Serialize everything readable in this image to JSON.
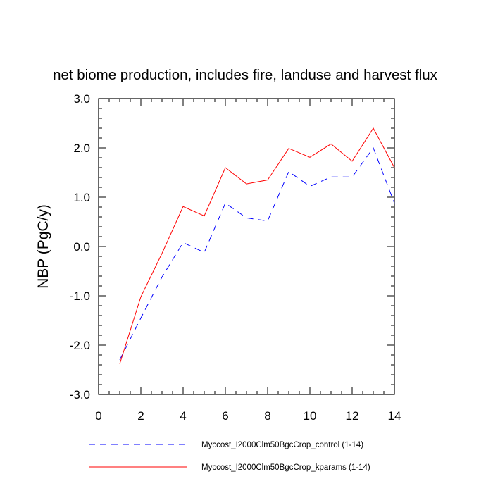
{
  "chart_data": {
    "type": "line",
    "title": "net biome production, includes fire, landuse and harvest flux",
    "xlabel": "",
    "ylabel": "NBP  (PgC/y)",
    "xlim": [
      0,
      14
    ],
    "ylim": [
      -3.0,
      3.0
    ],
    "xticks": [
      0,
      2,
      4,
      6,
      8,
      10,
      12,
      14
    ],
    "yticks": [
      -3.0,
      -2.0,
      -1.0,
      0.0,
      1.0,
      2.0,
      3.0
    ],
    "ytick_labels": [
      "-3.0",
      "-2.0",
      "-1.0",
      "0.0",
      "1.0",
      "2.0",
      "3.0"
    ],
    "grid": false,
    "legend_position": "bottom",
    "x": [
      1,
      2,
      3,
      4,
      5,
      6,
      7,
      8,
      9,
      10,
      11,
      12,
      13,
      14
    ],
    "series": [
      {
        "name": "Myccost_I2000Clm50BgcCrop_control (1-14)",
        "color": "#0000ff",
        "style": "dashed",
        "values": [
          -2.3,
          -1.45,
          -0.62,
          0.08,
          -0.12,
          0.88,
          0.58,
          0.52,
          1.52,
          1.22,
          1.41,
          1.41,
          2.0,
          0.88
        ]
      },
      {
        "name": "Myccost_I2000Clm50BgcCrop_kparams (1-14)",
        "color": "#ff0000",
        "style": "solid",
        "values": [
          -2.38,
          -1.02,
          -0.14,
          0.81,
          0.62,
          1.6,
          1.27,
          1.35,
          1.99,
          1.81,
          2.08,
          1.73,
          2.4,
          1.6
        ]
      }
    ]
  }
}
